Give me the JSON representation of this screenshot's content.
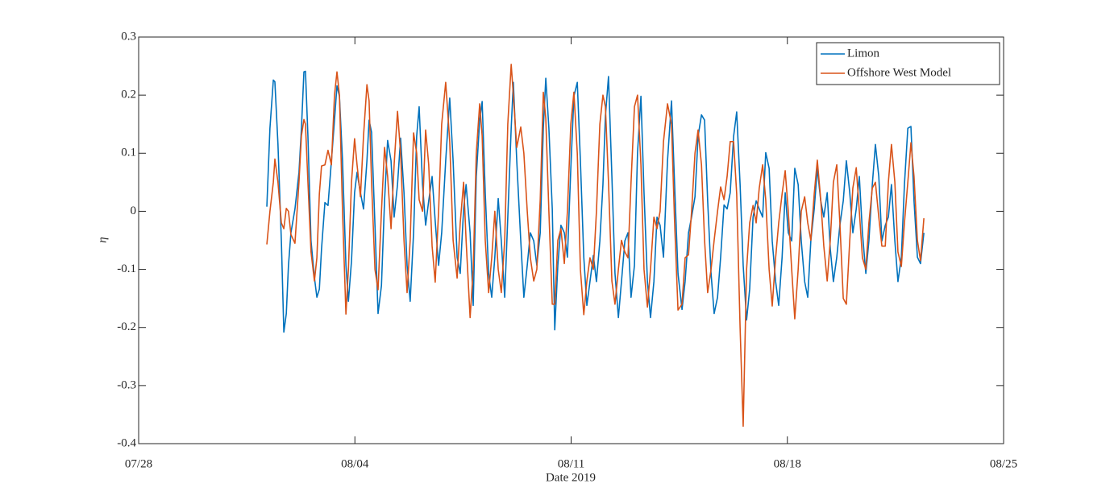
{
  "chart_data": {
    "type": "line",
    "xlabel": "Date 2019",
    "ylabel": "η",
    "xlim": [
      -3,
      25
    ],
    "xticks": [
      {
        "value": -3,
        "label": "07/28"
      },
      {
        "value": 4,
        "label": "08/04"
      },
      {
        "value": 11,
        "label": "08/11"
      },
      {
        "value": 18,
        "label": "08/18"
      },
      {
        "value": 25,
        "label": "08/25"
      }
    ],
    "ylim": [
      -0.4,
      0.3
    ],
    "yticks": [
      -0.4,
      -0.3,
      -0.2,
      -0.1,
      0,
      0.1,
      0.2,
      0.3
    ],
    "grid": false,
    "legend": "upper right",
    "x": [
      1.15,
      1.25,
      1.36,
      1.41,
      1.51,
      1.62,
      1.7,
      1.78,
      1.85,
      1.93,
      2.06,
      2.19,
      2.27,
      2.35,
      2.4,
      2.48,
      2.58,
      2.69,
      2.77,
      2.85,
      2.92,
      3.03,
      3.13,
      3.24,
      3.34,
      3.42,
      3.5,
      3.6,
      3.71,
      3.79,
      3.89,
      3.99,
      4.07,
      4.18,
      4.28,
      4.39,
      4.46,
      4.54,
      4.65,
      4.75,
      4.86,
      4.96,
      5.06,
      5.17,
      5.27,
      5.38,
      5.48,
      5.59,
      5.69,
      5.79,
      5.9,
      6.0,
      6.08,
      6.19,
      6.29,
      6.39,
      6.5,
      6.6,
      6.71,
      6.81,
      6.94,
      7.07,
      7.18,
      7.31,
      7.41,
      7.52,
      7.6,
      7.73,
      7.83,
      7.93,
      8.04,
      8.12,
      8.22,
      8.33,
      8.43,
      8.53,
      8.64,
      8.74,
      8.85,
      8.95,
      9.06,
      9.13,
      9.24,
      9.37,
      9.47,
      9.58,
      9.68,
      9.79,
      9.89,
      10.0,
      10.1,
      10.18,
      10.28,
      10.39,
      10.47,
      10.57,
      10.67,
      10.78,
      10.88,
      10.99,
      11.09,
      11.2,
      11.3,
      11.41,
      11.51,
      11.61,
      11.72,
      11.82,
      11.93,
      12.03,
      12.11,
      12.21,
      12.32,
      12.42,
      12.53,
      12.63,
      12.74,
      12.84,
      12.94,
      13.05,
      13.15,
      13.26,
      13.36,
      13.47,
      13.57,
      13.68,
      13.78,
      13.88,
      13.99,
      14.12,
      14.25,
      14.35,
      14.46,
      14.59,
      14.69,
      14.8,
      14.9,
      15.01,
      15.11,
      15.22,
      15.32,
      15.42,
      15.53,
      15.63,
      15.74,
      15.84,
      15.95,
      16.05,
      16.15,
      16.26,
      16.36,
      16.47,
      16.57,
      16.68,
      16.78,
      16.89,
      16.99,
      17.09,
      17.2,
      17.3,
      17.41,
      17.51,
      17.62,
      17.72,
      17.83,
      17.93,
      18.03,
      18.14,
      18.24,
      18.35,
      18.45,
      18.56,
      18.66,
      18.76,
      18.87,
      18.97,
      19.08,
      19.18,
      19.29,
      19.39,
      19.49,
      19.6,
      19.7,
      19.81,
      19.91,
      20.02,
      20.12,
      20.23,
      20.33,
      20.43,
      20.54,
      20.64,
      20.75,
      20.85,
      20.96,
      21.06,
      21.17,
      21.27,
      21.37,
      21.48,
      21.58,
      21.69,
      21.79,
      21.9,
      22.0,
      22.1,
      22.21,
      22.31,
      22.42
    ],
    "series": [
      {
        "name": "Limon",
        "color": "#0072bd",
        "values": [
          0.008,
          0.143,
          0.226,
          0.223,
          0.115,
          -0.051,
          -0.208,
          -0.176,
          -0.093,
          -0.037,
          0.004,
          0.067,
          0.143,
          0.24,
          0.241,
          0.129,
          -0.051,
          -0.114,
          -0.148,
          -0.134,
          -0.065,
          0.015,
          0.01,
          0.087,
          0.157,
          0.216,
          0.198,
          0.087,
          -0.093,
          -0.155,
          -0.086,
          0.032,
          0.067,
          0.032,
          0.004,
          0.087,
          0.157,
          0.136,
          -0.024,
          -0.176,
          -0.128,
          0.018,
          0.122,
          0.087,
          -0.01,
          0.046,
          0.126,
          0.032,
          -0.093,
          -0.155,
          -0.037,
          0.129,
          0.18,
          0.046,
          -0.024,
          0.018,
          0.06,
          -0.017,
          -0.093,
          -0.037,
          0.087,
          0.195,
          0.087,
          -0.079,
          -0.107,
          0.004,
          0.046,
          -0.037,
          -0.162,
          0.06,
          0.157,
          0.189,
          0.032,
          -0.107,
          -0.148,
          -0.079,
          0.022,
          -0.051,
          -0.148,
          -0.01,
          0.143,
          0.222,
          0.087,
          -0.051,
          -0.148,
          -0.093,
          -0.037,
          -0.051,
          -0.093,
          -0.037,
          0.143,
          0.229,
          0.143,
          0.004,
          -0.204,
          -0.093,
          -0.024,
          -0.037,
          -0.079,
          0.074,
          0.198,
          0.222,
          0.087,
          -0.079,
          -0.162,
          -0.121,
          -0.076,
          -0.121,
          -0.051,
          0.046,
          0.164,
          0.232,
          0.06,
          -0.107,
          -0.183,
          -0.121,
          -0.051,
          -0.037,
          -0.148,
          -0.093,
          0.101,
          0.198,
          0.032,
          -0.121,
          -0.183,
          -0.121,
          -0.01,
          -0.024,
          -0.079,
          0.087,
          0.19,
          0.046,
          -0.107,
          -0.169,
          -0.121,
          -0.037,
          -0.01,
          0.025,
          0.129,
          0.166,
          0.157,
          0.018,
          -0.107,
          -0.176,
          -0.148,
          -0.079,
          0.011,
          0.004,
          0.032,
          0.129,
          0.171,
          0.046,
          -0.093,
          -0.187,
          -0.134,
          -0.01,
          0.018,
          0.004,
          -0.01,
          0.101,
          0.074,
          -0.051,
          -0.121,
          -0.162,
          -0.079,
          0.032,
          -0.037,
          -0.051,
          0.074,
          0.046,
          -0.051,
          -0.121,
          -0.148,
          -0.051,
          0.004,
          0.074,
          0.018,
          -0.01,
          0.032,
          -0.065,
          -0.121,
          -0.079,
          -0.024,
          0.018,
          0.087,
          0.032,
          -0.037,
          0.004,
          0.06,
          -0.037,
          -0.107,
          -0.051,
          0.046,
          0.115,
          0.06,
          -0.051,
          -0.024,
          -0.01,
          0.046,
          -0.051,
          -0.121,
          -0.079,
          0.046,
          0.143,
          0.146,
          0.018,
          -0.079,
          -0.09,
          -0.037
        ]
      },
      {
        "name": "Offshore West Model",
        "color": "#d95319",
        "values": [
          -0.057,
          0.0,
          0.05,
          0.09,
          0.05,
          -0.02,
          -0.03,
          0.005,
          0.0,
          -0.04,
          -0.055,
          0.05,
          0.13,
          0.158,
          0.15,
          0.05,
          -0.07,
          -0.12,
          -0.08,
          0.03,
          0.078,
          0.08,
          0.105,
          0.08,
          0.2,
          0.24,
          0.2,
          0.0,
          -0.177,
          -0.1,
          0.05,
          0.125,
          0.08,
          0.025,
          0.13,
          0.218,
          0.19,
          0.05,
          -0.1,
          -0.135,
          0.0,
          0.11,
          0.06,
          -0.03,
          0.08,
          0.172,
          0.1,
          -0.05,
          -0.14,
          -0.05,
          0.135,
          0.1,
          0.02,
          0.0,
          0.14,
          0.08,
          -0.06,
          -0.122,
          0.0,
          0.15,
          0.222,
          0.12,
          -0.05,
          -0.115,
          -0.02,
          0.05,
          -0.05,
          -0.183,
          -0.1,
          0.1,
          0.185,
          0.13,
          -0.05,
          -0.14,
          -0.08,
          0.0,
          -0.1,
          -0.14,
          -0.05,
          0.15,
          0.253,
          0.2,
          0.11,
          0.145,
          0.1,
          0.0,
          -0.08,
          -0.12,
          -0.1,
          0.02,
          0.205,
          0.16,
          0.0,
          -0.16,
          -0.16,
          -0.05,
          -0.03,
          -0.09,
          0.0,
          0.15,
          0.205,
          0.1,
          -0.1,
          -0.178,
          -0.12,
          -0.08,
          -0.1,
          0.0,
          0.15,
          0.2,
          0.18,
          0.05,
          -0.12,
          -0.16,
          -0.1,
          -0.05,
          -0.07,
          -0.08,
          0.05,
          0.18,
          0.2,
          0.08,
          -0.1,
          -0.165,
          -0.1,
          -0.01,
          -0.03,
          0.0,
          0.12,
          0.185,
          0.15,
          -0.02,
          -0.17,
          -0.16,
          -0.08,
          -0.075,
          0.0,
          0.1,
          0.14,
          0.08,
          -0.05,
          -0.14,
          -0.1,
          -0.05,
          0.0,
          0.042,
          0.02,
          0.06,
          0.12,
          0.12,
          0.03,
          -0.2,
          -0.37,
          -0.1,
          -0.02,
          0.01,
          -0.02,
          0.04,
          0.08,
          0.02,
          -0.1,
          -0.163,
          -0.08,
          -0.02,
          0.03,
          0.07,
          0.0,
          -0.1,
          -0.185,
          -0.1,
          0.0,
          0.025,
          -0.02,
          -0.05,
          0.03,
          0.088,
          0.02,
          -0.06,
          -0.12,
          -0.05,
          0.05,
          0.08,
          -0.02,
          -0.15,
          -0.16,
          -0.05,
          0.04,
          0.075,
          0.0,
          -0.08,
          -0.1,
          -0.02,
          0.04,
          0.05,
          -0.01,
          -0.06,
          -0.06,
          0.05,
          0.115,
          0.05,
          -0.07,
          -0.095,
          -0.02,
          0.05,
          0.118,
          0.06,
          -0.05,
          -0.085,
          -0.012
        ]
      }
    ]
  }
}
